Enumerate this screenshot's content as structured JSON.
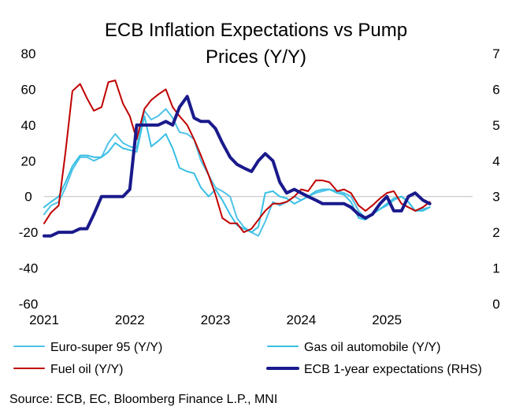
{
  "chart_data": {
    "type": "line",
    "title": "ECB Inflation Expectations vs Pump Prices (Y/Y)",
    "title_lines": [
      "ECB Inflation Expectations vs Pump",
      "Prices (Y/Y)"
    ],
    "x_axis": {
      "min": 2021.0,
      "max": 2026.0,
      "tick_values": [
        2021,
        2022,
        2023,
        2024,
        2025
      ],
      "tick_labels": [
        "2021",
        "2022",
        "2023",
        "2024",
        "2025"
      ]
    },
    "y_left": {
      "min": -60,
      "max": 80,
      "tick_values": [
        80,
        60,
        40,
        20,
        0,
        -20,
        -40,
        -60
      ],
      "tick_labels": [
        "80",
        "60",
        "40",
        "20",
        "0",
        "-20",
        "-40",
        "-60"
      ]
    },
    "y_right": {
      "min": 0,
      "max": 7,
      "tick_values": [
        7,
        6,
        5,
        4,
        3,
        2,
        1,
        0
      ],
      "tick_labels": [
        "7",
        "6",
        "5",
        "4",
        "3",
        "2",
        "1",
        "0"
      ]
    },
    "series": [
      {
        "name": "Euro-super 95  (Y/Y)",
        "axis": "left",
        "color": "#4fc3e8",
        "width": 2,
        "x": [
          2021.0,
          2021.08,
          2021.17,
          2021.25,
          2021.33,
          2021.42,
          2021.5,
          2021.58,
          2021.67,
          2021.75,
          2021.83,
          2021.92,
          2022.0,
          2022.08,
          2022.17,
          2022.25,
          2022.33,
          2022.42,
          2022.5,
          2022.58,
          2022.67,
          2022.75,
          2022.83,
          2022.92,
          2023.0,
          2023.08,
          2023.17,
          2023.25,
          2023.33,
          2023.42,
          2023.5,
          2023.58,
          2023.67,
          2023.75,
          2023.83,
          2023.92,
          2024.0,
          2024.08,
          2024.17,
          2024.25,
          2024.33,
          2024.42,
          2024.5,
          2024.58,
          2024.67,
          2024.75,
          2024.83,
          2024.92,
          2025.0,
          2025.08,
          2025.17,
          2025.25,
          2025.33,
          2025.42,
          2025.5
        ],
        "values": [
          -10,
          -5,
          -3,
          5,
          15,
          22,
          22,
          20,
          22,
          30,
          35,
          30,
          28,
          27,
          48,
          43,
          45,
          49,
          44,
          36,
          35,
          32,
          20,
          12,
          5,
          3,
          0,
          -12,
          -17,
          -20,
          -22,
          -14,
          -3,
          -5,
          -3,
          0,
          -2,
          0,
          2,
          3,
          4,
          3,
          2,
          0,
          -8,
          -12,
          -10,
          -7,
          -5,
          -2,
          0,
          -3,
          -8,
          -7,
          -6
        ]
      },
      {
        "name": "Gas oil automobile (Y/Y)",
        "axis": "left",
        "color": "#38bfe4",
        "width": 2,
        "x": [
          2021.0,
          2021.08,
          2021.17,
          2021.25,
          2021.33,
          2021.42,
          2021.5,
          2021.58,
          2021.67,
          2021.75,
          2021.83,
          2021.92,
          2022.0,
          2022.08,
          2022.17,
          2022.25,
          2022.33,
          2022.42,
          2022.5,
          2022.58,
          2022.67,
          2022.75,
          2022.83,
          2022.92,
          2023.0,
          2023.08,
          2023.17,
          2023.25,
          2023.33,
          2023.42,
          2023.5,
          2023.58,
          2023.67,
          2023.75,
          2023.83,
          2023.92,
          2024.0,
          2024.08,
          2024.17,
          2024.25,
          2024.33,
          2024.42,
          2024.5,
          2024.58,
          2024.67,
          2024.75,
          2024.83,
          2024.92,
          2025.0,
          2025.08,
          2025.17,
          2025.25,
          2025.33,
          2025.42,
          2025.5
        ],
        "values": [
          -6,
          -3,
          0,
          8,
          17,
          23,
          23,
          22,
          22,
          25,
          30,
          27,
          26,
          25,
          45,
          28,
          31,
          35,
          27,
          16,
          14,
          13,
          5,
          0,
          4,
          -2,
          -10,
          -16,
          -18,
          -20,
          -17,
          2,
          3,
          0,
          -1,
          -4,
          -2,
          0,
          3,
          4,
          4,
          2,
          1,
          -3,
          -12,
          -13,
          -10,
          -7,
          -4,
          -1,
          0,
          -3,
          -8,
          -8,
          -6
        ]
      },
      {
        "name": "Fuel oil (Y/Y)",
        "axis": "left",
        "color": "#c00000",
        "width": 2,
        "x": [
          2021.0,
          2021.08,
          2021.17,
          2021.25,
          2021.33,
          2021.42,
          2021.5,
          2021.58,
          2021.67,
          2021.75,
          2021.83,
          2021.92,
          2022.0,
          2022.08,
          2022.17,
          2022.25,
          2022.33,
          2022.42,
          2022.5,
          2022.58,
          2022.67,
          2022.75,
          2022.83,
          2022.92,
          2023.0,
          2023.08,
          2023.17,
          2023.25,
          2023.33,
          2023.42,
          2023.5,
          2023.58,
          2023.67,
          2023.75,
          2023.83,
          2023.92,
          2024.0,
          2024.08,
          2024.17,
          2024.25,
          2024.33,
          2024.42,
          2024.5,
          2024.58,
          2024.67,
          2024.75,
          2024.83,
          2024.92,
          2025.0,
          2025.08,
          2025.17,
          2025.25,
          2025.33,
          2025.42,
          2025.5
        ],
        "values": [
          -15,
          -9,
          -5,
          25,
          59,
          63,
          55,
          48,
          50,
          64,
          65,
          52,
          45,
          32,
          49,
          54,
          57,
          60,
          50,
          45,
          40,
          32,
          23,
          12,
          1,
          -12,
          -15,
          -15,
          -20,
          -18,
          -13,
          -8,
          -4,
          -4,
          -3,
          0,
          4,
          3,
          9,
          9,
          8,
          3,
          4,
          2,
          -5,
          -8,
          -5,
          -1,
          2,
          3,
          -4,
          -6,
          -8,
          -6,
          -3
        ]
      },
      {
        "name": "ECB 1-year expectations (RHS)",
        "axis": "right",
        "color": "#1a1a8c",
        "width": 4,
        "x": [
          2021.0,
          2021.08,
          2021.17,
          2021.25,
          2021.33,
          2021.42,
          2021.5,
          2021.58,
          2021.67,
          2021.75,
          2021.83,
          2021.92,
          2022.0,
          2022.08,
          2022.17,
          2022.25,
          2022.33,
          2022.42,
          2022.5,
          2022.58,
          2022.67,
          2022.75,
          2022.83,
          2022.92,
          2023.0,
          2023.08,
          2023.17,
          2023.25,
          2023.33,
          2023.42,
          2023.5,
          2023.58,
          2023.67,
          2023.75,
          2023.83,
          2023.92,
          2024.0,
          2024.08,
          2024.17,
          2024.25,
          2024.33,
          2024.42,
          2024.5,
          2024.58,
          2024.67,
          2024.75,
          2024.83,
          2024.92,
          2025.0,
          2025.08,
          2025.17,
          2025.25,
          2025.33,
          2025.42,
          2025.5
        ],
        "values": [
          1.9,
          1.9,
          2.0,
          2.0,
          2.0,
          2.1,
          2.1,
          2.5,
          3.0,
          3.0,
          3.0,
          3.0,
          3.2,
          5.0,
          5.0,
          5.0,
          5.0,
          5.1,
          5.0,
          5.5,
          5.8,
          5.2,
          5.1,
          5.1,
          4.9,
          4.5,
          4.1,
          3.9,
          3.8,
          3.7,
          4.0,
          4.2,
          4.0,
          3.4,
          3.1,
          3.2,
          3.1,
          3.0,
          2.9,
          2.8,
          2.8,
          2.8,
          2.8,
          2.7,
          2.5,
          2.4,
          2.5,
          2.8,
          3.0,
          2.6,
          2.6,
          3.0,
          3.1,
          2.9,
          2.8
        ]
      }
    ],
    "legend": {
      "position": "bottom",
      "items": [
        {
          "label": "Euro-super 95  (Y/Y)",
          "color": "#4fc3e8",
          "width": 2
        },
        {
          "label": "Gas oil automobile (Y/Y)",
          "color": "#38bfe4",
          "width": 2
        },
        {
          "label": "Fuel oil (Y/Y)",
          "color": "#c00000",
          "width": 2
        },
        {
          "label": "ECB 1-year expectations (RHS)",
          "color": "#1a1a8c",
          "width": 4
        }
      ]
    },
    "source": "Source: ECB, EC, Bloomberg Finance L.P., MNI"
  }
}
